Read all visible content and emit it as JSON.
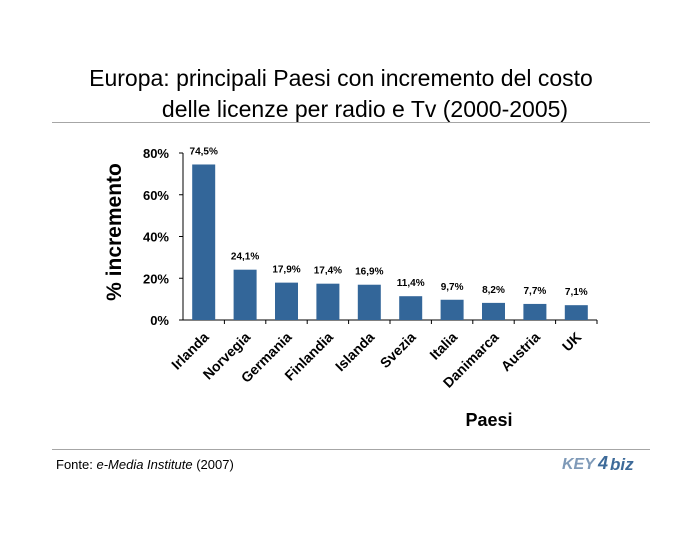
{
  "title": {
    "line1": "Europa: principali Paesi con incremento del costo",
    "line2": "delle licenze per radio e Tv (2000-2005)"
  },
  "chart_data": {
    "type": "bar",
    "title": "Europa: principali Paesi con incremento del costo delle licenze per radio e Tv (2000-2005)",
    "xlabel": "Paesi",
    "ylabel": "% incremento",
    "ylim": [
      0,
      80
    ],
    "yticks": [
      0,
      20,
      40,
      60,
      80
    ],
    "ytick_labels": [
      "0%",
      "20%",
      "40%",
      "60%",
      "80%"
    ],
    "categories": [
      "Irlanda",
      "Norvegia",
      "Germania",
      "Finlandia",
      "Islanda",
      "Svezia",
      "Italia",
      "Danimarca",
      "Austria",
      "UK"
    ],
    "values": [
      74.5,
      24.1,
      17.9,
      17.4,
      16.9,
      11.4,
      9.7,
      8.2,
      7.7,
      7.1
    ],
    "data_labels": [
      "74,5%",
      "24,1%",
      "17,9%",
      "17,4%",
      "16,9%",
      "11,4%",
      "9,7%",
      "8,2%",
      "7,7%",
      "7,1%"
    ],
    "bar_color": "#336699",
    "grid": false,
    "legend": "none"
  },
  "footer": {
    "prefix": "Fonte: ",
    "source": "e-Media Institute",
    "suffix": " (2007)"
  },
  "logo": {
    "text_left": "KEY",
    "text_mark": "4",
    "text_right": "biz",
    "color": "#5b7fa6"
  }
}
